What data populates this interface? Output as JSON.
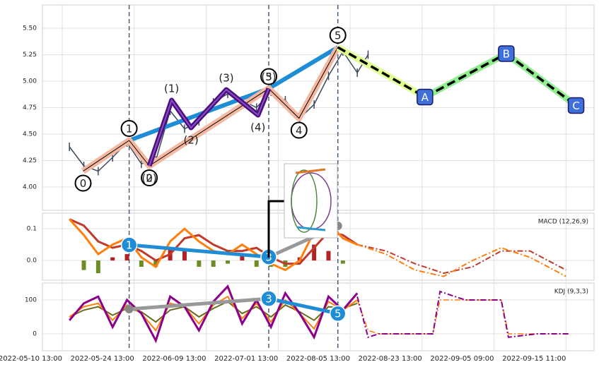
{
  "chart_data": [
    {
      "type": "line",
      "ylim": [
        3.78,
        5.72
      ],
      "yticks": [
        {
          "value": 4,
          "label": "4.00"
        },
        {
          "value": 4.25,
          "label": "4.25"
        },
        {
          "value": 4.5,
          "label": "4.50"
        },
        {
          "value": 4.75,
          "label": "4.75"
        },
        {
          "value": 5,
          "label": "5.00"
        },
        {
          "value": 5.25,
          "label": "5.25"
        },
        {
          "value": 5.5,
          "label": "5.50"
        }
      ],
      "x": [
        1,
        3,
        5,
        7,
        9,
        11,
        13,
        15,
        17,
        19,
        21,
        23,
        25,
        27,
        29,
        31,
        33,
        35,
        37,
        39,
        41,
        42.5
      ],
      "values": [
        4.38,
        4.2,
        4.15,
        4.28,
        4.42,
        4.22,
        4.25,
        4.72,
        4.55,
        4.62,
        4.8,
        4.88,
        4.82,
        4.75,
        4.9,
        4.82,
        4.65,
        4.78,
        5.05,
        5.28,
        5.08,
        5.25
      ],
      "color": "#3d4a5c",
      "vlines": [
        9.3,
        28.7,
        38.3
      ],
      "trend": {
        "x": [
          9.3,
          28.7,
          38.3
        ],
        "values": [
          4.44,
          4.93,
          5.32
        ],
        "color": "#1f8dd6"
      },
      "primary": {
        "x": [
          2.9,
          9.3,
          12.1,
          28.7,
          32.9,
          38.3
        ],
        "values": [
          4.15,
          4.44,
          4.2,
          4.93,
          4.65,
          5.32
        ],
        "labels": [
          "0",
          "1",
          "2",
          "3",
          "4",
          "5"
        ],
        "color": "#f4b7a0"
      },
      "minor": {
        "x": [
          12.1,
          15.2,
          17.9,
          22.8,
          27.2,
          28.7
        ],
        "values": [
          4.2,
          4.82,
          4.56,
          4.92,
          4.68,
          4.93
        ],
        "labels": [
          "(0)",
          "(1)",
          "(2)",
          "(3)",
          "(4)",
          "(5)"
        ],
        "color": "#4b0f80"
      },
      "forecast": {
        "x": [
          38.3,
          50.4,
          61.7,
          71.4
        ],
        "values": [
          5.32,
          4.85,
          5.26,
          4.77
        ],
        "labels": [
          null,
          "A",
          "B",
          "C"
        ],
        "colors": [
          "#dfff90",
          "#90ee90",
          "#90ee90"
        ]
      }
    },
    {
      "type": "macd",
      "title": "MACD (12,26,9)",
      "ylim": [
        -0.062,
        0.149
      ],
      "yticks": [
        {
          "value": 0,
          "label": "0.0"
        },
        0.1
      ],
      "x": [
        1,
        3,
        5,
        7,
        9,
        11,
        13,
        15,
        17,
        19,
        21,
        23,
        25,
        27,
        29,
        31,
        33,
        35,
        37,
        39,
        41
      ],
      "macd": {
        "values": [
          0.13,
          0.08,
          0.02,
          0.05,
          0.07,
          0.01,
          -0.02,
          0.06,
          0.1,
          0.06,
          0.03,
          0.02,
          0.05,
          0.02,
          -0.01,
          -0.03,
          0.0,
          0.09,
          0.12,
          0.07,
          0.05
        ],
        "color": "#ff7f0e"
      },
      "signal": {
        "values": [
          0.13,
          0.11,
          0.06,
          0.04,
          0.05,
          0.03,
          0.0,
          0.02,
          0.07,
          0.08,
          0.05,
          0.03,
          0.03,
          0.04,
          0.01,
          -0.01,
          -0.01,
          0.04,
          0.09,
          0.08,
          0.05
        ],
        "color": "#c0392b"
      },
      "histogram": {
        "values": [
          0.0,
          -0.03,
          -0.04,
          0.01,
          0.02,
          -0.02,
          -0.02,
          0.04,
          0.03,
          -0.02,
          -0.02,
          -0.01,
          0.02,
          -0.02,
          -0.02,
          -0.02,
          0.01,
          0.05,
          0.03,
          -0.01,
          0.0
        ],
        "pos_color": "#b22222",
        "neg_color": "#6b8e23"
      },
      "forecast": {
        "x": [
          41,
          45,
          49,
          53,
          57,
          61,
          65,
          70
        ],
        "macd": [
          0.05,
          0.02,
          -0.03,
          -0.05,
          0.0,
          0.04,
          0.01,
          -0.05
        ],
        "signal": [
          0.05,
          0.03,
          -0.01,
          -0.04,
          -0.02,
          0.03,
          0.03,
          -0.03
        ]
      },
      "annotations": {
        "x": [
          9.3,
          28.7,
          38.3
        ],
        "values": [
          0.049,
          0.011,
          0.109
        ],
        "labels": [
          "1",
          "3",
          null
        ],
        "colors": [
          "#1f8dd6",
          "#999999"
        ]
      }
    },
    {
      "type": "kdj",
      "title": "KDJ (9,3,3)",
      "ylim": [
        -50,
        150
      ],
      "yticks": [
        0,
        100
      ],
      "xlim": [
        -2.75,
        73.9
      ],
      "xticks": [
        {
          "value": 0,
          "label": "2022-05-10 13:00"
        },
        {
          "value": 10,
          "label": "2022-05-24 13:00"
        },
        {
          "value": 20,
          "label": "2022-06-09 13:00"
        },
        {
          "value": 30,
          "label": "2022-07-01 13:00"
        },
        {
          "value": 40,
          "label": "2022-08-05 13:00"
        },
        {
          "value": 50,
          "label": "2022-08-23 13:00"
        },
        {
          "value": 60,
          "label": "2022-09-05 09:00"
        },
        {
          "value": 70,
          "label": "2022-09-15 11:00"
        }
      ],
      "x": [
        1,
        3,
        5,
        7,
        9,
        11,
        13,
        15,
        17,
        19,
        21,
        23,
        25,
        27,
        29,
        31,
        33,
        35,
        37,
        39,
        41
      ],
      "k": {
        "values": [
          50,
          80,
          90,
          40,
          85,
          60,
          10,
          90,
          80,
          30,
          85,
          110,
          45,
          90,
          35,
          100,
          60,
          15,
          95,
          70,
          100
        ],
        "color": "#ff7f0e"
      },
      "d": {
        "values": [
          50,
          70,
          80,
          55,
          75,
          65,
          35,
          70,
          80,
          50,
          75,
          95,
          60,
          80,
          50,
          85,
          65,
          40,
          80,
          75,
          90
        ],
        "color": "#6b6b20"
      },
      "j": {
        "values": [
          40,
          90,
          110,
          20,
          100,
          60,
          -20,
          110,
          80,
          10,
          95,
          140,
          30,
          100,
          20,
          120,
          60,
          -10,
          110,
          70,
          120
        ],
        "color": "#8b008b"
      },
      "forecast": {
        "x": [
          41,
          42.5,
          44,
          48,
          51.5,
          52.5,
          56,
          61,
          62,
          66,
          70.5
        ],
        "k": [
          100,
          10,
          0,
          0,
          0,
          100,
          100,
          100,
          0,
          0,
          0
        ],
        "j": [
          110,
          -10,
          0,
          0,
          0,
          125,
          100,
          100,
          -10,
          0,
          0
        ]
      },
      "annotations": {
        "x": [
          9.3,
          28.7,
          38.3
        ],
        "values": [
          73,
          104,
          60
        ],
        "labels": [
          null,
          "3",
          "5"
        ],
        "colors": [
          "#999999",
          "#1f8dd6"
        ]
      }
    }
  ]
}
